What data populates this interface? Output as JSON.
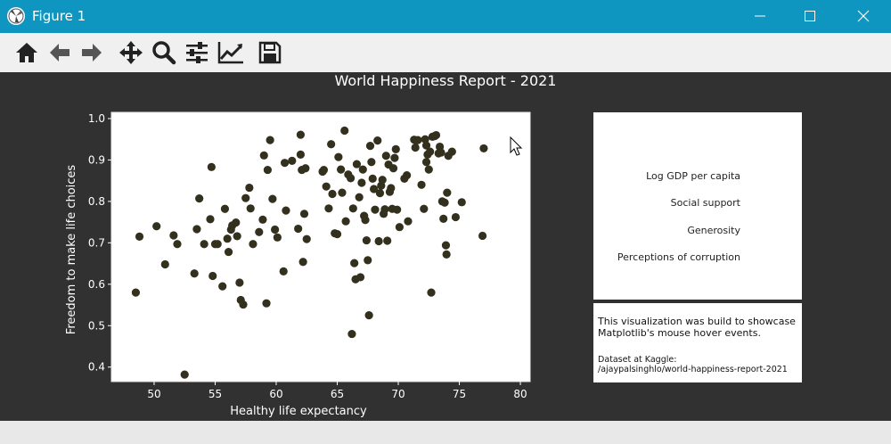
{
  "window": {
    "title": "Figure 1",
    "app_icon": "matplotlib-icon",
    "controls": [
      "minimize-icon",
      "maximize-icon",
      "close-icon"
    ]
  },
  "toolbar": {
    "tools": [
      "home-icon",
      "back-arrow-icon",
      "forward-arrow-icon",
      "pan-icon",
      "zoom-icon",
      "subplots-icon",
      "edit-axis-icon",
      "save-icon"
    ]
  },
  "figure": {
    "background": "#313131",
    "title": "World Happiness Report - 2021"
  },
  "side_panel": {
    "items": [
      "Log GDP per capita",
      "Social support",
      "Generosity",
      "Perceptions of corruption"
    ]
  },
  "info_panel": {
    "line1": "This visualization was build to showcase",
    "line2": "Matplotlib's mouse hover events.",
    "line3": "Dataset at Kaggle:",
    "line4": "/ajaypalsinghlo/world-happiness-report-2021"
  },
  "chart_data": {
    "type": "scatter",
    "title": "World Happiness Report - 2021",
    "xlabel": "Healthy life expectancy",
    "ylabel": "Freedom to make life choices",
    "xlim": [
      46.5,
      80.8
    ],
    "ylim": [
      0.365,
      1.015
    ],
    "xticks": [
      50,
      55,
      60,
      65,
      70,
      75,
      80
    ],
    "yticks": [
      0.4,
      0.5,
      0.6,
      0.7,
      0.8,
      0.9,
      1.0
    ],
    "grid": false,
    "marker_color": "#33301e",
    "points": [
      [
        48.5,
        0.58
      ],
      [
        48.8,
        0.715
      ],
      [
        50.2,
        0.74
      ],
      [
        50.9,
        0.648
      ],
      [
        51.6,
        0.718
      ],
      [
        51.9,
        0.697
      ],
      [
        52.5,
        0.382
      ],
      [
        53.3,
        0.626
      ],
      [
        53.5,
        0.733
      ],
      [
        53.7,
        0.807
      ],
      [
        54.1,
        0.697
      ],
      [
        54.6,
        0.757
      ],
      [
        54.7,
        0.883
      ],
      [
        54.8,
        0.62
      ],
      [
        55.0,
        0.697
      ],
      [
        55.2,
        0.697
      ],
      [
        55.6,
        0.595
      ],
      [
        55.8,
        0.782
      ],
      [
        56.0,
        0.71
      ],
      [
        56.1,
        0.678
      ],
      [
        56.3,
        0.732
      ],
      [
        56.4,
        0.742
      ],
      [
        56.7,
        0.749
      ],
      [
        56.8,
        0.716
      ],
      [
        57.0,
        0.604
      ],
      [
        57.1,
        0.562
      ],
      [
        57.3,
        0.551
      ],
      [
        57.5,
        0.808
      ],
      [
        57.8,
        0.833
      ],
      [
        57.9,
        0.783
      ],
      [
        58.1,
        0.697
      ],
      [
        58.6,
        0.726
      ],
      [
        58.9,
        0.756
      ],
      [
        59.0,
        0.911
      ],
      [
        59.3,
        0.876
      ],
      [
        59.2,
        0.554
      ],
      [
        59.5,
        0.948
      ],
      [
        59.7,
        0.806
      ],
      [
        59.9,
        0.732
      ],
      [
        60.1,
        0.713
      ],
      [
        60.6,
        0.631
      ],
      [
        60.7,
        0.893
      ],
      [
        60.8,
        0.778
      ],
      [
        61.3,
        0.898
      ],
      [
        61.8,
        0.734
      ],
      [
        62.0,
        0.961
      ],
      [
        62.0,
        0.913
      ],
      [
        62.1,
        0.876
      ],
      [
        62.2,
        0.654
      ],
      [
        62.3,
        0.77
      ],
      [
        62.5,
        0.709
      ],
      [
        62.4,
        0.88
      ],
      [
        63.8,
        0.872
      ],
      [
        63.9,
        0.876
      ],
      [
        64.1,
        0.836
      ],
      [
        64.3,
        0.783
      ],
      [
        64.5,
        0.938
      ],
      [
        64.6,
        0.818
      ],
      [
        64.8,
        0.723
      ],
      [
        65.0,
        0.721
      ],
      [
        65.1,
        0.907
      ],
      [
        65.3,
        0.877
      ],
      [
        65.4,
        0.821
      ],
      [
        65.6,
        0.971
      ],
      [
        65.7,
        0.752
      ],
      [
        65.9,
        0.865
      ],
      [
        66.1,
        0.856
      ],
      [
        66.2,
        0.48
      ],
      [
        66.3,
        0.783
      ],
      [
        66.4,
        0.651
      ],
      [
        66.5,
        0.612
      ],
      [
        66.6,
        0.89
      ],
      [
        66.8,
        0.81
      ],
      [
        66.9,
        0.617
      ],
      [
        67.0,
        0.845
      ],
      [
        67.1,
        0.877
      ],
      [
        67.2,
        0.765
      ],
      [
        67.3,
        0.755
      ],
      [
        67.4,
        0.706
      ],
      [
        67.5,
        0.658
      ],
      [
        67.6,
        0.525
      ],
      [
        67.7,
        0.934
      ],
      [
        67.8,
        0.895
      ],
      [
        67.9,
        0.855
      ],
      [
        68.0,
        0.83
      ],
      [
        68.1,
        0.78
      ],
      [
        68.3,
        0.947
      ],
      [
        68.4,
        0.704
      ],
      [
        68.5,
        0.82
      ],
      [
        68.6,
        0.838
      ],
      [
        68.7,
        0.852
      ],
      [
        68.8,
        0.77
      ],
      [
        68.9,
        0.781
      ],
      [
        69.0,
        0.91
      ],
      [
        69.1,
        0.705
      ],
      [
        69.2,
        0.889
      ],
      [
        69.3,
        0.823
      ],
      [
        69.4,
        0.832
      ],
      [
        69.5,
        0.782
      ],
      [
        69.6,
        0.88
      ],
      [
        69.7,
        0.905
      ],
      [
        69.8,
        0.926
      ],
      [
        69.9,
        0.78
      ],
      [
        70.1,
        0.738
      ],
      [
        70.5,
        0.855
      ],
      [
        70.7,
        0.863
      ],
      [
        70.8,
        0.752
      ],
      [
        71.3,
        0.949
      ],
      [
        71.4,
        0.93
      ],
      [
        71.6,
        0.948
      ],
      [
        71.9,
        0.84
      ],
      [
        72.1,
        0.782
      ],
      [
        72.2,
        0.95
      ],
      [
        72.3,
        0.935
      ],
      [
        72.3,
        0.895
      ],
      [
        72.4,
        0.913
      ],
      [
        72.5,
        0.877
      ],
      [
        72.6,
        0.92
      ],
      [
        72.7,
        0.58
      ],
      [
        72.8,
        0.956
      ],
      [
        73.0,
        0.958
      ],
      [
        73.1,
        0.96
      ],
      [
        73.3,
        0.916
      ],
      [
        73.4,
        0.932
      ],
      [
        73.5,
        0.918
      ],
      [
        73.6,
        0.8
      ],
      [
        73.7,
        0.758
      ],
      [
        73.8,
        0.797
      ],
      [
        73.9,
        0.694
      ],
      [
        73.95,
        0.672
      ],
      [
        74.0,
        0.821
      ],
      [
        74.1,
        0.91
      ],
      [
        74.4,
        0.92
      ],
      [
        74.7,
        0.762
      ],
      [
        75.2,
        0.798
      ],
      [
        76.9,
        0.717
      ],
      [
        77.0,
        0.928
      ]
    ]
  }
}
